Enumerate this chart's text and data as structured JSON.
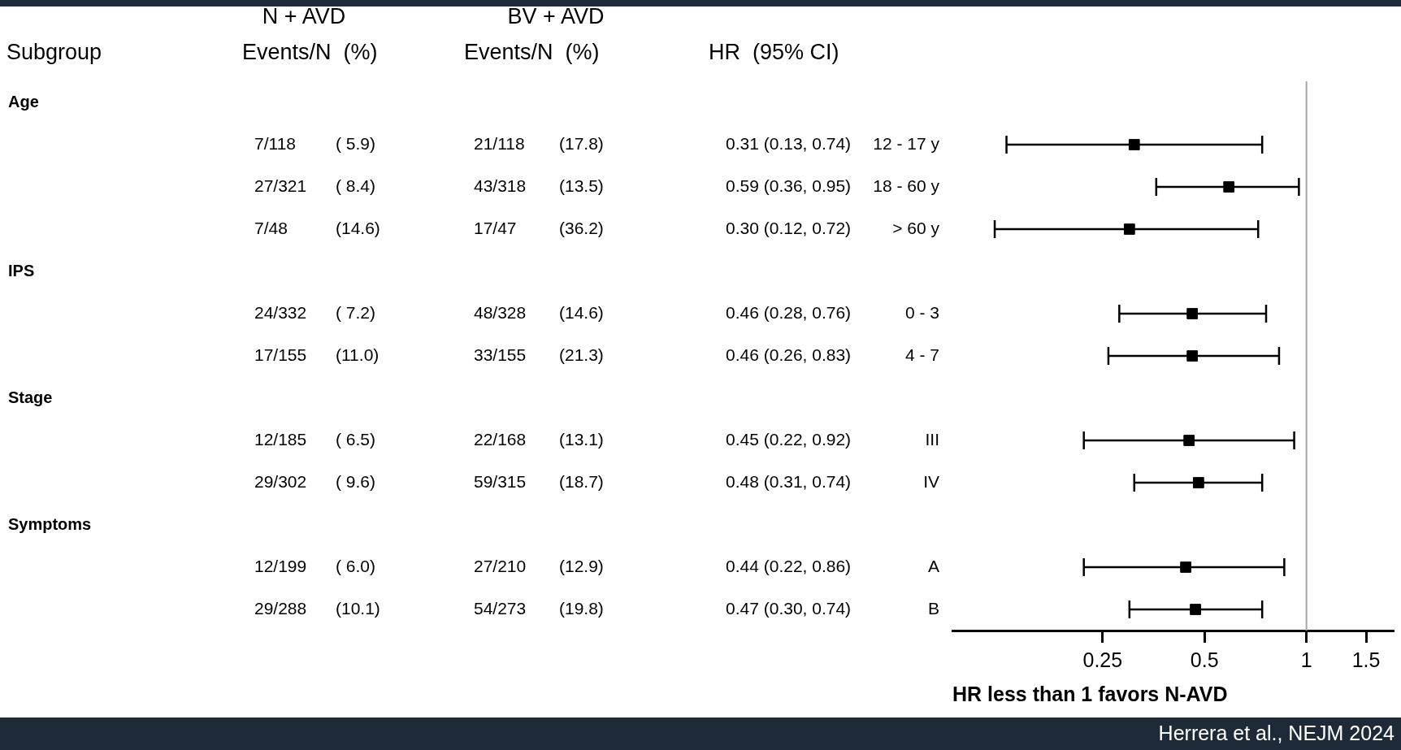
{
  "chart_data": {
    "type": "scatter",
    "xlabel": "HR less than 1 favors N-AVD",
    "categories": [
      null,
      "12 - 17 y",
      "18 - 60 y",
      "> 60 y",
      null,
      "0 - 3",
      "4 - 7",
      null,
      "III",
      "IV",
      null,
      "A",
      "B"
    ],
    "values": [
      null,
      0.31,
      0.59,
      0.3,
      null,
      0.46,
      0.46,
      null,
      0.45,
      0.48,
      null,
      0.44,
      0.47
    ],
    "errors": [
      null,
      [
        0.13,
        0.74
      ],
      [
        0.36,
        0.95
      ],
      [
        0.12,
        0.72
      ],
      null,
      [
        0.28,
        0.76
      ],
      [
        0.26,
        0.83
      ],
      null,
      [
        0.22,
        0.92
      ],
      [
        0.31,
        0.74
      ],
      null,
      [
        0.22,
        0.86
      ],
      [
        0.3,
        0.74
      ]
    ],
    "value_labels": [
      null,
      "0.31 (0.13, 0.74)",
      "0.59 (0.36, 0.95)",
      "0.30 (0.12, 0.72)",
      null,
      "0.46 (0.28, 0.76)",
      "0.46 (0.26, 0.83)",
      null,
      "0.45 (0.22, 0.92)",
      "0.48 (0.31, 0.74)",
      null,
      "0.44 (0.22, 0.86)",
      "0.47 (0.30, 0.74)"
    ],
    "color": "#000000",
    "marker": "square",
    "orientation": "horizontal",
    "log": "x",
    "xlim": [
      0.09,
      1.8
    ],
    "xticks": [
      0.25,
      0.5,
      1,
      1.5
    ],
    "grid": false,
    "legend": false,
    "ref_lines": [
      {
        "axis": "x",
        "value": 1,
        "color": "#a6a6a6"
      }
    ],
    "annotations": [
      "Subgroup",
      "N + AVD",
      "Events/N  (%)",
      "BV + AVD",
      "Events/N  (%)",
      "HR  (95% CI)",
      "Age",
      "7/118",
      "( 5.9)",
      "21/118",
      "(17.8)",
      "27/321",
      "( 8.4)",
      "43/318",
      "(13.5)",
      "7/48",
      "(14.6)",
      "17/47",
      "(36.2)",
      "IPS",
      "24/332",
      "( 7.2)",
      "48/328",
      "(14.6)",
      "17/155",
      "(11.0)",
      "33/155",
      "(21.3)",
      "Stage",
      "12/185",
      "( 6.5)",
      "22/168",
      "(13.1)",
      "29/302",
      "( 9.6)",
      "59/315",
      "(18.7)",
      "Symptoms",
      "12/199",
      "( 6.0)",
      "27/210",
      "(12.9)",
      "29/288",
      "(10.1)",
      "54/273",
      "(19.8)",
      "Herrera et al., NEJM 2024"
    ]
  }
}
